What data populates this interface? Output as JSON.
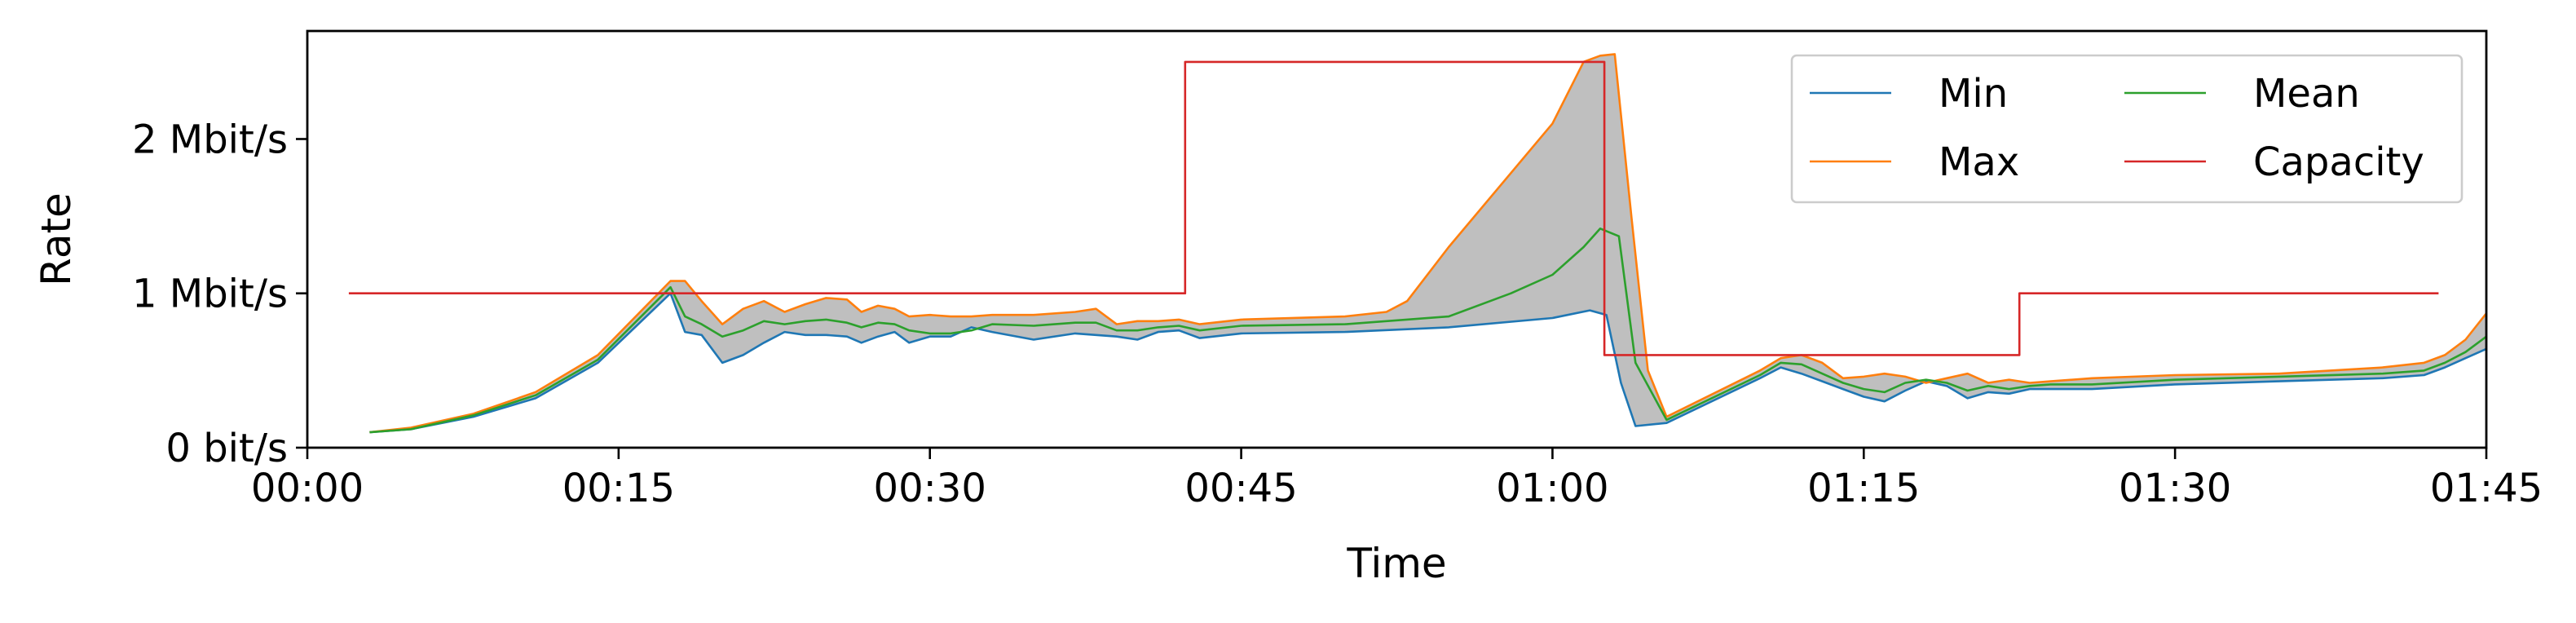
{
  "chart_data": {
    "type": "line",
    "xlabel": "Time",
    "ylabel": "Rate",
    "x_unit": "minutes",
    "xlim": [
      0,
      105
    ],
    "ylim": [
      0,
      2.7
    ],
    "y_unit": "Mbit/s",
    "grid": false,
    "legend_position": "top-right",
    "x_ticks": [
      {
        "value": 0,
        "label": "00:00"
      },
      {
        "value": 15,
        "label": "00:15"
      },
      {
        "value": 30,
        "label": "00:30"
      },
      {
        "value": 45,
        "label": "00:45"
      },
      {
        "value": 60,
        "label": "01:00"
      },
      {
        "value": 75,
        "label": "01:15"
      },
      {
        "value": 90,
        "label": "01:30"
      },
      {
        "value": 105,
        "label": "01:45"
      }
    ],
    "y_ticks": [
      {
        "value": 0,
        "label": "0 bit/s"
      },
      {
        "value": 1,
        "label": "1 Mbit/s"
      },
      {
        "value": 2,
        "label": "2 Mbit/s"
      }
    ],
    "band_fill": "#bfbfbf",
    "series": [
      {
        "name": "Min",
        "color": "#1f77b4",
        "x": [
          3,
          5,
          8,
          11,
          14,
          17.5,
          18.2,
          19,
          20,
          21,
          22,
          23,
          24,
          25,
          26,
          26.7,
          27.5,
          28.3,
          29,
          30,
          31,
          32,
          33,
          35,
          37,
          38,
          39,
          40,
          41,
          42,
          43,
          45,
          50,
          55,
          60,
          61.8,
          62.6,
          63.3,
          64,
          65.5,
          70,
          71,
          72,
          73,
          74,
          75,
          76,
          77,
          78,
          79,
          80,
          81,
          82,
          83,
          84,
          86,
          90,
          95,
          100,
          102,
          103,
          104,
          105
        ],
        "y": [
          0.1,
          0.12,
          0.2,
          0.32,
          0.55,
          1.0,
          0.75,
          0.73,
          0.55,
          0.6,
          0.68,
          0.75,
          0.73,
          0.73,
          0.72,
          0.68,
          0.72,
          0.75,
          0.68,
          0.72,
          0.72,
          0.78,
          0.75,
          0.7,
          0.74,
          0.73,
          0.72,
          0.7,
          0.75,
          0.76,
          0.71,
          0.74,
          0.75,
          0.78,
          0.84,
          0.89,
          0.86,
          0.42,
          0.14,
          0.16,
          0.45,
          0.52,
          0.48,
          0.43,
          0.38,
          0.33,
          0.3,
          0.37,
          0.43,
          0.4,
          0.32,
          0.36,
          0.35,
          0.38,
          0.38,
          0.38,
          0.41,
          0.43,
          0.45,
          0.47,
          0.52,
          0.58,
          0.64
        ]
      },
      {
        "name": "Max",
        "color": "#ff7f0e",
        "x": [
          3,
          5,
          8,
          11,
          14,
          17.5,
          18.2,
          19,
          20,
          21,
          22,
          23,
          24,
          25,
          26,
          26.7,
          27.5,
          28.3,
          29,
          30,
          31,
          32,
          33,
          35,
          37,
          38,
          39,
          40,
          41,
          42,
          43,
          45,
          50,
          52,
          53,
          55,
          60,
          61.5,
          62.3,
          63,
          63.8,
          64.6,
          65.5,
          70,
          71,
          72,
          73,
          74,
          75,
          76,
          77,
          78,
          79,
          80,
          81,
          82,
          83,
          84,
          86,
          90,
          95,
          100,
          102,
          103,
          104,
          105
        ],
        "y": [
          0.1,
          0.13,
          0.22,
          0.36,
          0.6,
          1.08,
          1.08,
          0.95,
          0.8,
          0.9,
          0.95,
          0.88,
          0.93,
          0.97,
          0.96,
          0.88,
          0.92,
          0.9,
          0.85,
          0.86,
          0.85,
          0.85,
          0.86,
          0.86,
          0.88,
          0.9,
          0.8,
          0.82,
          0.82,
          0.83,
          0.8,
          0.83,
          0.85,
          0.88,
          0.95,
          1.3,
          2.1,
          2.5,
          2.54,
          2.55,
          1.5,
          0.5,
          0.2,
          0.5,
          0.58,
          0.6,
          0.55,
          0.45,
          0.46,
          0.48,
          0.46,
          0.42,
          0.45,
          0.48,
          0.42,
          0.44,
          0.42,
          0.43,
          0.45,
          0.47,
          0.48,
          0.52,
          0.55,
          0.6,
          0.7,
          0.87
        ]
      },
      {
        "name": "Mean",
        "color": "#2ca02c",
        "x": [
          3,
          5,
          8,
          11,
          14,
          17.5,
          18.2,
          19,
          20,
          21,
          22,
          23,
          24,
          25,
          26,
          26.7,
          27.5,
          28.3,
          29,
          30,
          31,
          32,
          33,
          35,
          37,
          38,
          39,
          40,
          41,
          42,
          43,
          45,
          50,
          55,
          58,
          60,
          61.5,
          62.3,
          63.2,
          64,
          65.5,
          70,
          71,
          72,
          73,
          74,
          75,
          76,
          77,
          78,
          79,
          80,
          81,
          82,
          83,
          84,
          86,
          90,
          95,
          100,
          102,
          103,
          104,
          105
        ],
        "y": [
          0.1,
          0.12,
          0.21,
          0.34,
          0.57,
          1.04,
          0.85,
          0.8,
          0.72,
          0.76,
          0.82,
          0.8,
          0.82,
          0.83,
          0.81,
          0.78,
          0.81,
          0.8,
          0.76,
          0.74,
          0.74,
          0.76,
          0.8,
          0.79,
          0.81,
          0.81,
          0.76,
          0.76,
          0.78,
          0.79,
          0.76,
          0.79,
          0.8,
          0.85,
          1.0,
          1.12,
          1.3,
          1.42,
          1.37,
          0.55,
          0.18,
          0.47,
          0.55,
          0.54,
          0.48,
          0.42,
          0.38,
          0.36,
          0.42,
          0.44,
          0.42,
          0.37,
          0.4,
          0.38,
          0.4,
          0.41,
          0.41,
          0.44,
          0.46,
          0.48,
          0.5,
          0.55,
          0.62,
          0.72
        ]
      },
      {
        "name": "Capacity",
        "color": "#d62728",
        "step": true,
        "x": [
          2,
          42.3,
          42.3,
          62.5,
          62.5,
          82.5,
          82.5,
          102.7
        ],
        "y": [
          1.0,
          1.0,
          2.5,
          2.5,
          0.6,
          0.6,
          1.0,
          1.0
        ]
      }
    ]
  }
}
